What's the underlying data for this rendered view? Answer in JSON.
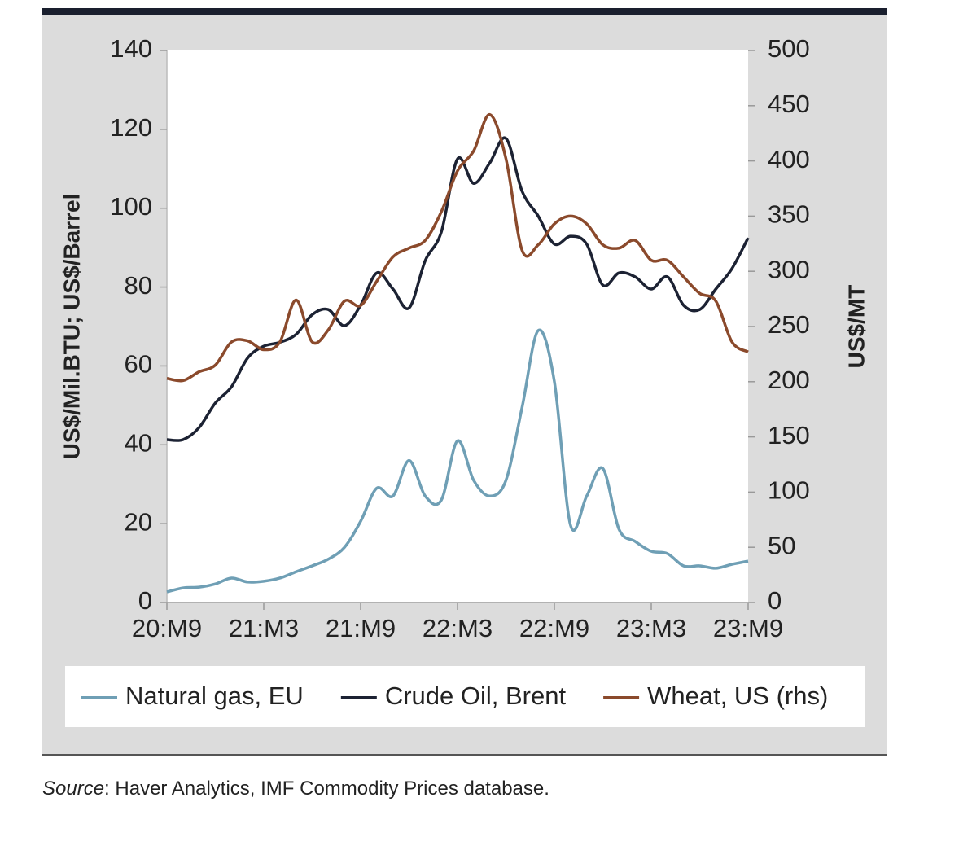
{
  "chart_data": {
    "type": "line",
    "categories": [
      "20:M9",
      null,
      null,
      null,
      null,
      null,
      "21:M3",
      null,
      null,
      null,
      null,
      null,
      "21:M9",
      null,
      null,
      null,
      null,
      null,
      "22:M3",
      null,
      null,
      null,
      null,
      null,
      "22:M9",
      null,
      null,
      null,
      null,
      null,
      "23:M3",
      null,
      null,
      null,
      null,
      null,
      "23:M9"
    ],
    "series": [
      {
        "name": "Natural gas, EU",
        "color": "#6f9fb5",
        "values": [
          2.7,
          3.7,
          3.9,
          4.7,
          6.2,
          5.2,
          5.4,
          6.2,
          7.8,
          9.3,
          11,
          14,
          20.6,
          29,
          27,
          36,
          27,
          26,
          41,
          31,
          27,
          31,
          49.5,
          69,
          56,
          19.6,
          27,
          34,
          18.6,
          15.5,
          13,
          12.4,
          9.3,
          9.3,
          8.7,
          9.7,
          10.5
        ]
      },
      {
        "name": "Crude Oil, Brent",
        "color": "#1c2233",
        "values": [
          41.3,
          41.3,
          44.4,
          50.6,
          54.7,
          62,
          65,
          66,
          68,
          73,
          74.3,
          70.2,
          75.4,
          83.6,
          79.5,
          74.7,
          86.7,
          94,
          112.5,
          106.3,
          111.5,
          117.7,
          104.3,
          98,
          90.9,
          92.9,
          90.9,
          80.5,
          83.6,
          82.6,
          79.5,
          82.6,
          75.4,
          74.3,
          79.5,
          84.7,
          92.5
        ]
      },
      {
        "name": "Wheat, US (rhs)",
        "color": "#8b4a2c",
        "axis": "y2",
        "values": [
          203,
          201,
          209,
          215,
          236,
          237,
          229,
          236,
          274,
          236,
          247,
          273,
          269,
          291,
          313,
          321,
          328,
          354,
          391,
          409,
          442,
          402,
          319,
          324,
          343,
          350,
          343,
          324,
          321,
          328,
          310,
          310,
          295,
          280,
          273,
          236,
          227
        ]
      }
    ],
    "ylabel": "US$/Mil.BTU; US$/Barrel",
    "y2label": "US$/MT",
    "ylim": [
      0,
      140
    ],
    "yticks": [
      0,
      20,
      40,
      60,
      80,
      100,
      120,
      140
    ],
    "y2lim": [
      0,
      500
    ],
    "y2ticks": [
      0,
      50,
      100,
      150,
      200,
      250,
      300,
      350,
      400,
      450,
      500
    ],
    "legend": "bottom"
  },
  "footer": {
    "label": "Source",
    "text": ": Haver Analytics, IMF Commodity Prices database."
  }
}
